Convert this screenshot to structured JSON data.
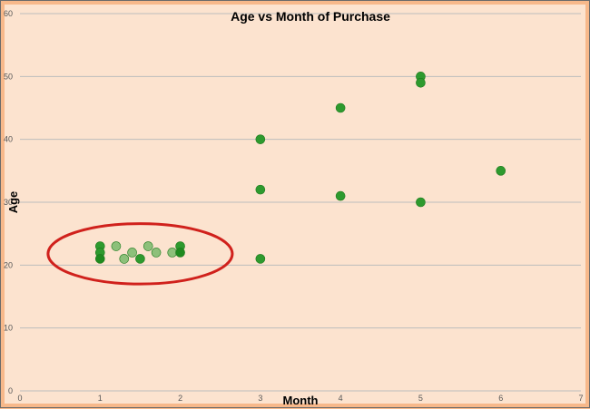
{
  "chart_data": {
    "type": "scatter",
    "title": "Age vs Month of Purchase",
    "xlabel": "Month",
    "ylabel": "Age",
    "xlim": [
      0,
      7
    ],
    "ylim": [
      0,
      60
    ],
    "x_ticks": [
      0,
      1,
      2,
      3,
      4,
      5,
      6,
      7
    ],
    "y_ticks": [
      0,
      10,
      20,
      30,
      40,
      50,
      60
    ],
    "grid": "horizontal",
    "legend": "none",
    "colors": {
      "point": "#2e9a2e",
      "point_highlighted": "#8dc07a",
      "point_dark": "#1f8a1f",
      "gridline": "#bdbdbd",
      "annotation_ellipse": "#d0211c"
    },
    "series": [
      {
        "points": [
          {
            "x": 1,
            "y": 23,
            "tone": "point"
          },
          {
            "x": 1,
            "y": 22,
            "tone": "point"
          },
          {
            "x": 1,
            "y": 21,
            "tone": "point_dark"
          },
          {
            "x": 1.2,
            "y": 23,
            "tone": "point_highlighted"
          },
          {
            "x": 1.3,
            "y": 21,
            "tone": "point_highlighted"
          },
          {
            "x": 1.4,
            "y": 22,
            "tone": "point_highlighted"
          },
          {
            "x": 1.5,
            "y": 21,
            "tone": "point"
          },
          {
            "x": 1.6,
            "y": 23,
            "tone": "point_highlighted"
          },
          {
            "x": 1.7,
            "y": 22,
            "tone": "point_highlighted"
          },
          {
            "x": 1.9,
            "y": 22,
            "tone": "point_highlighted"
          },
          {
            "x": 2,
            "y": 23,
            "tone": "point"
          },
          {
            "x": 2,
            "y": 22,
            "tone": "point_dark"
          },
          {
            "x": 3,
            "y": 40,
            "tone": "point"
          },
          {
            "x": 3,
            "y": 32,
            "tone": "point"
          },
          {
            "x": 3,
            "y": 21,
            "tone": "point"
          },
          {
            "x": 4,
            "y": 45,
            "tone": "point"
          },
          {
            "x": 4,
            "y": 31,
            "tone": "point"
          },
          {
            "x": 5,
            "y": 50,
            "tone": "point"
          },
          {
            "x": 5,
            "y": 49,
            "tone": "point"
          },
          {
            "x": 5,
            "y": 30,
            "tone": "point"
          },
          {
            "x": 6,
            "y": 35,
            "tone": "point"
          }
        ]
      }
    ],
    "annotations": [
      {
        "type": "ellipse",
        "center_x": 1.5,
        "center_y": 21.8,
        "radius_x": 1.15,
        "radius_y": 4.8,
        "color": "annotation_ellipse"
      }
    ]
  }
}
